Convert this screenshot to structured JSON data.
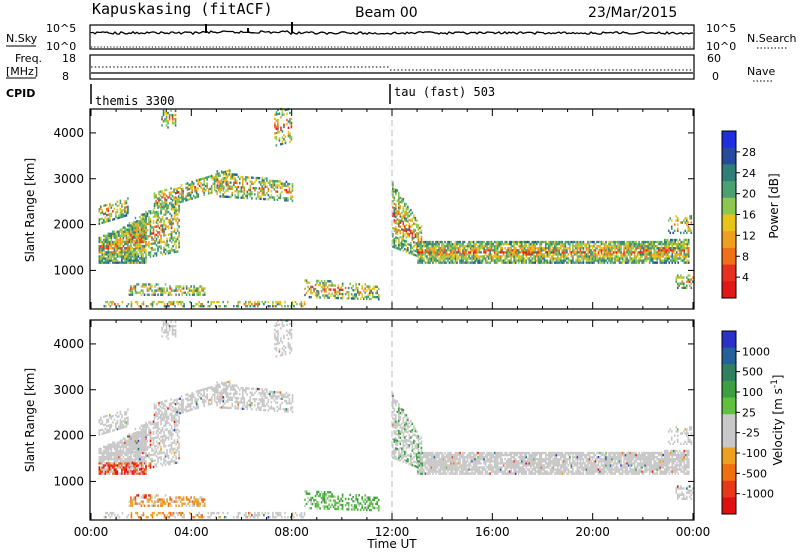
{
  "header": {
    "station": "Kapuskasing (fitACF)",
    "beam": "Beam 00",
    "date": "23/Mar/2015"
  },
  "strips": {
    "nsky_label": "N.Sky",
    "nsky_tick_top": "10^5",
    "nsky_tick_bottom": "10^0",
    "nsearch_label": "N.Search",
    "nsearch_tick_top": "10^5",
    "nsearch_tick_bottom": "10^0",
    "freq_label_1": "Freq.",
    "freq_label_2": "[MHz]",
    "freq_tick_top": "18",
    "freq_tick_bottom": "8",
    "nave_label": "Nave",
    "nave_tick_top": "60",
    "nave_tick_bottom": "0",
    "cpid_label": "CPID",
    "cpid_mode_1": "themis 3300",
    "cpid_mode_2": "tau (fast) 503"
  },
  "chart_data": [
    {
      "type": "heatmap",
      "name": "power",
      "ylabel": "Slant Range [km]",
      "ylim": [
        180,
        4500
      ],
      "yticks": [
        "1000",
        "2000",
        "3000",
        "4000"
      ],
      "xlim": [
        "00:00",
        "24:00"
      ],
      "xticks": [
        "00:00",
        "04:00",
        "08:00",
        "12:00",
        "16:00",
        "20:00",
        "00:00"
      ],
      "colorbar": {
        "label": "Power [dB]",
        "ticks": [
          "4",
          "8",
          "12",
          "16",
          "20",
          "24",
          "28"
        ],
        "colors": [
          "#1f2fe0",
          "#274b9c",
          "#2f7f78",
          "#4aa070",
          "#8cc74e",
          "#e8c419",
          "#f0a020",
          "#f07018",
          "#e83020",
          "#e01818"
        ]
      },
      "vertical_dashed_line_ut": 12.0
    },
    {
      "type": "heatmap",
      "name": "velocity",
      "ylabel": "Slant Range [km]",
      "ylim": [
        180,
        4500
      ],
      "yticks": [
        "1000",
        "2000",
        "3000",
        "4000"
      ],
      "xlim": [
        "00:00",
        "24:00"
      ],
      "xticks": [
        "00:00",
        "04:00",
        "08:00",
        "12:00",
        "16:00",
        "20:00",
        "00:00"
      ],
      "xlabel": "Time UT",
      "colorbar": {
        "label": "Velocity [m s^-1]",
        "ticks": [
          "1000",
          "500",
          "100",
          "25",
          "-25",
          "-100",
          "-500",
          "-1000"
        ],
        "colors": [
          "#2b30c8",
          "#24609a",
          "#2f8060",
          "#3da040",
          "#60c040",
          "#c8c8c8",
          "#c8c8c8",
          "#f0a020",
          "#f07010",
          "#e83818",
          "#e01010"
        ]
      },
      "vertical_dashed_line_ut": 12.0
    }
  ]
}
